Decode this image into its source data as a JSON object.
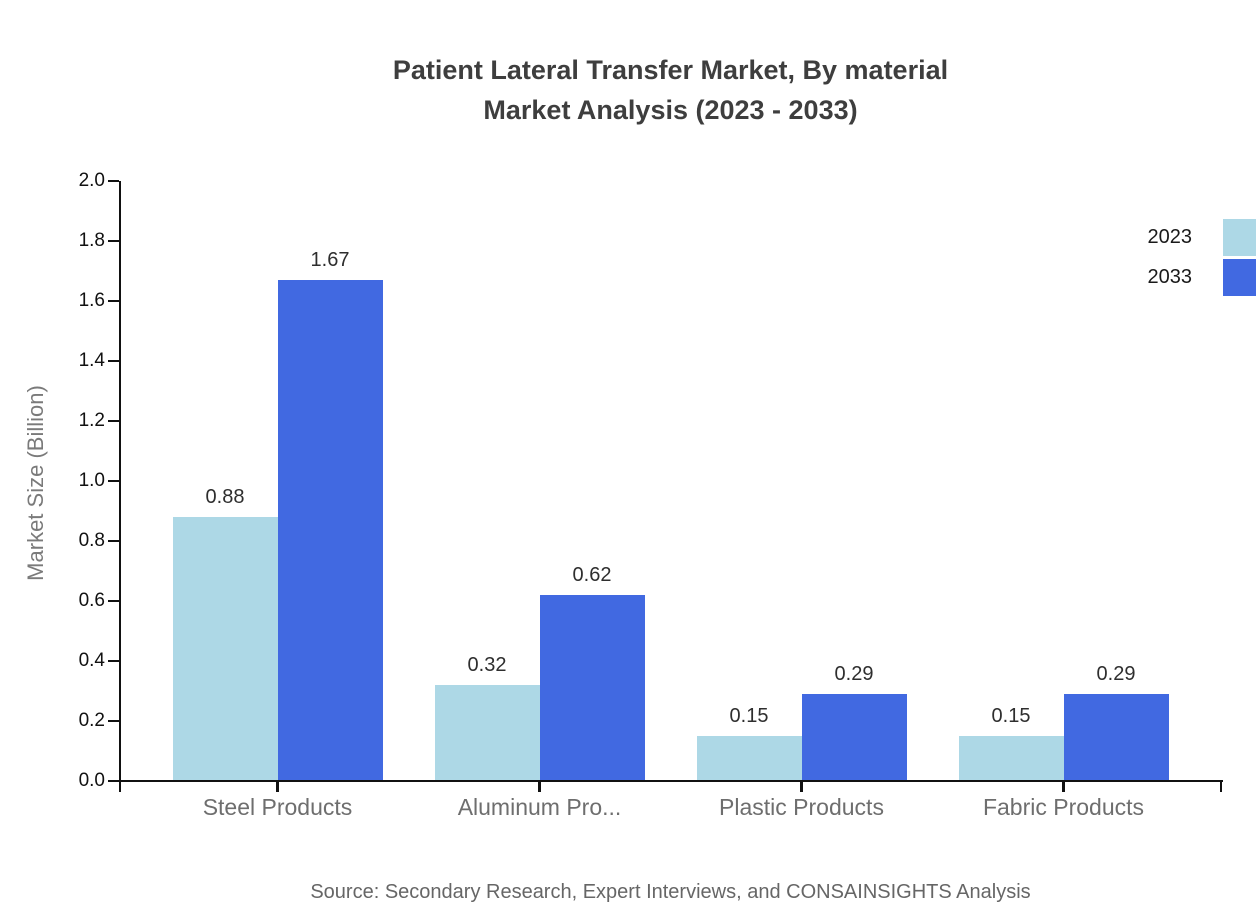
{
  "title": {
    "line1": "Patient Lateral Transfer Market, By material",
    "line2": "Market Analysis (2023 - 2033)"
  },
  "legend": {
    "items": [
      {
        "label": "2023",
        "color": "#ADD8E6"
      },
      {
        "label": "2033",
        "color": "#4169E1"
      }
    ]
  },
  "source_note": "Source: Secondary Research, Expert Interviews, and CONSAINSIGHTS Analysis",
  "chart_data": {
    "type": "bar",
    "title": "Patient Lateral Transfer Market, By material Market Analysis (2023 - 2033)",
    "categories": [
      "Steel Products",
      "Aluminum Pro...",
      "Plastic Products",
      "Fabric Products"
    ],
    "series": [
      {
        "name": "2023",
        "color": "#ADD8E6",
        "values": [
          0.88,
          0.32,
          0.15,
          0.15
        ]
      },
      {
        "name": "2033",
        "color": "#4169E1",
        "values": [
          1.67,
          0.62,
          0.29,
          0.29
        ]
      }
    ],
    "ylabel": "Market Size (Billion)",
    "xlabel": "",
    "ylim": [
      0.0,
      2.0
    ],
    "ytick_step": 0.2,
    "ytick_labels": [
      "0.0",
      "0.2",
      "0.4",
      "0.6",
      "0.8",
      "1.0",
      "1.2",
      "1.4",
      "1.6",
      "1.8",
      "2.0"
    ],
    "grid": false,
    "legend_position": "top-right",
    "bar_value_labels": true,
    "value_label_format": "0.00"
  }
}
